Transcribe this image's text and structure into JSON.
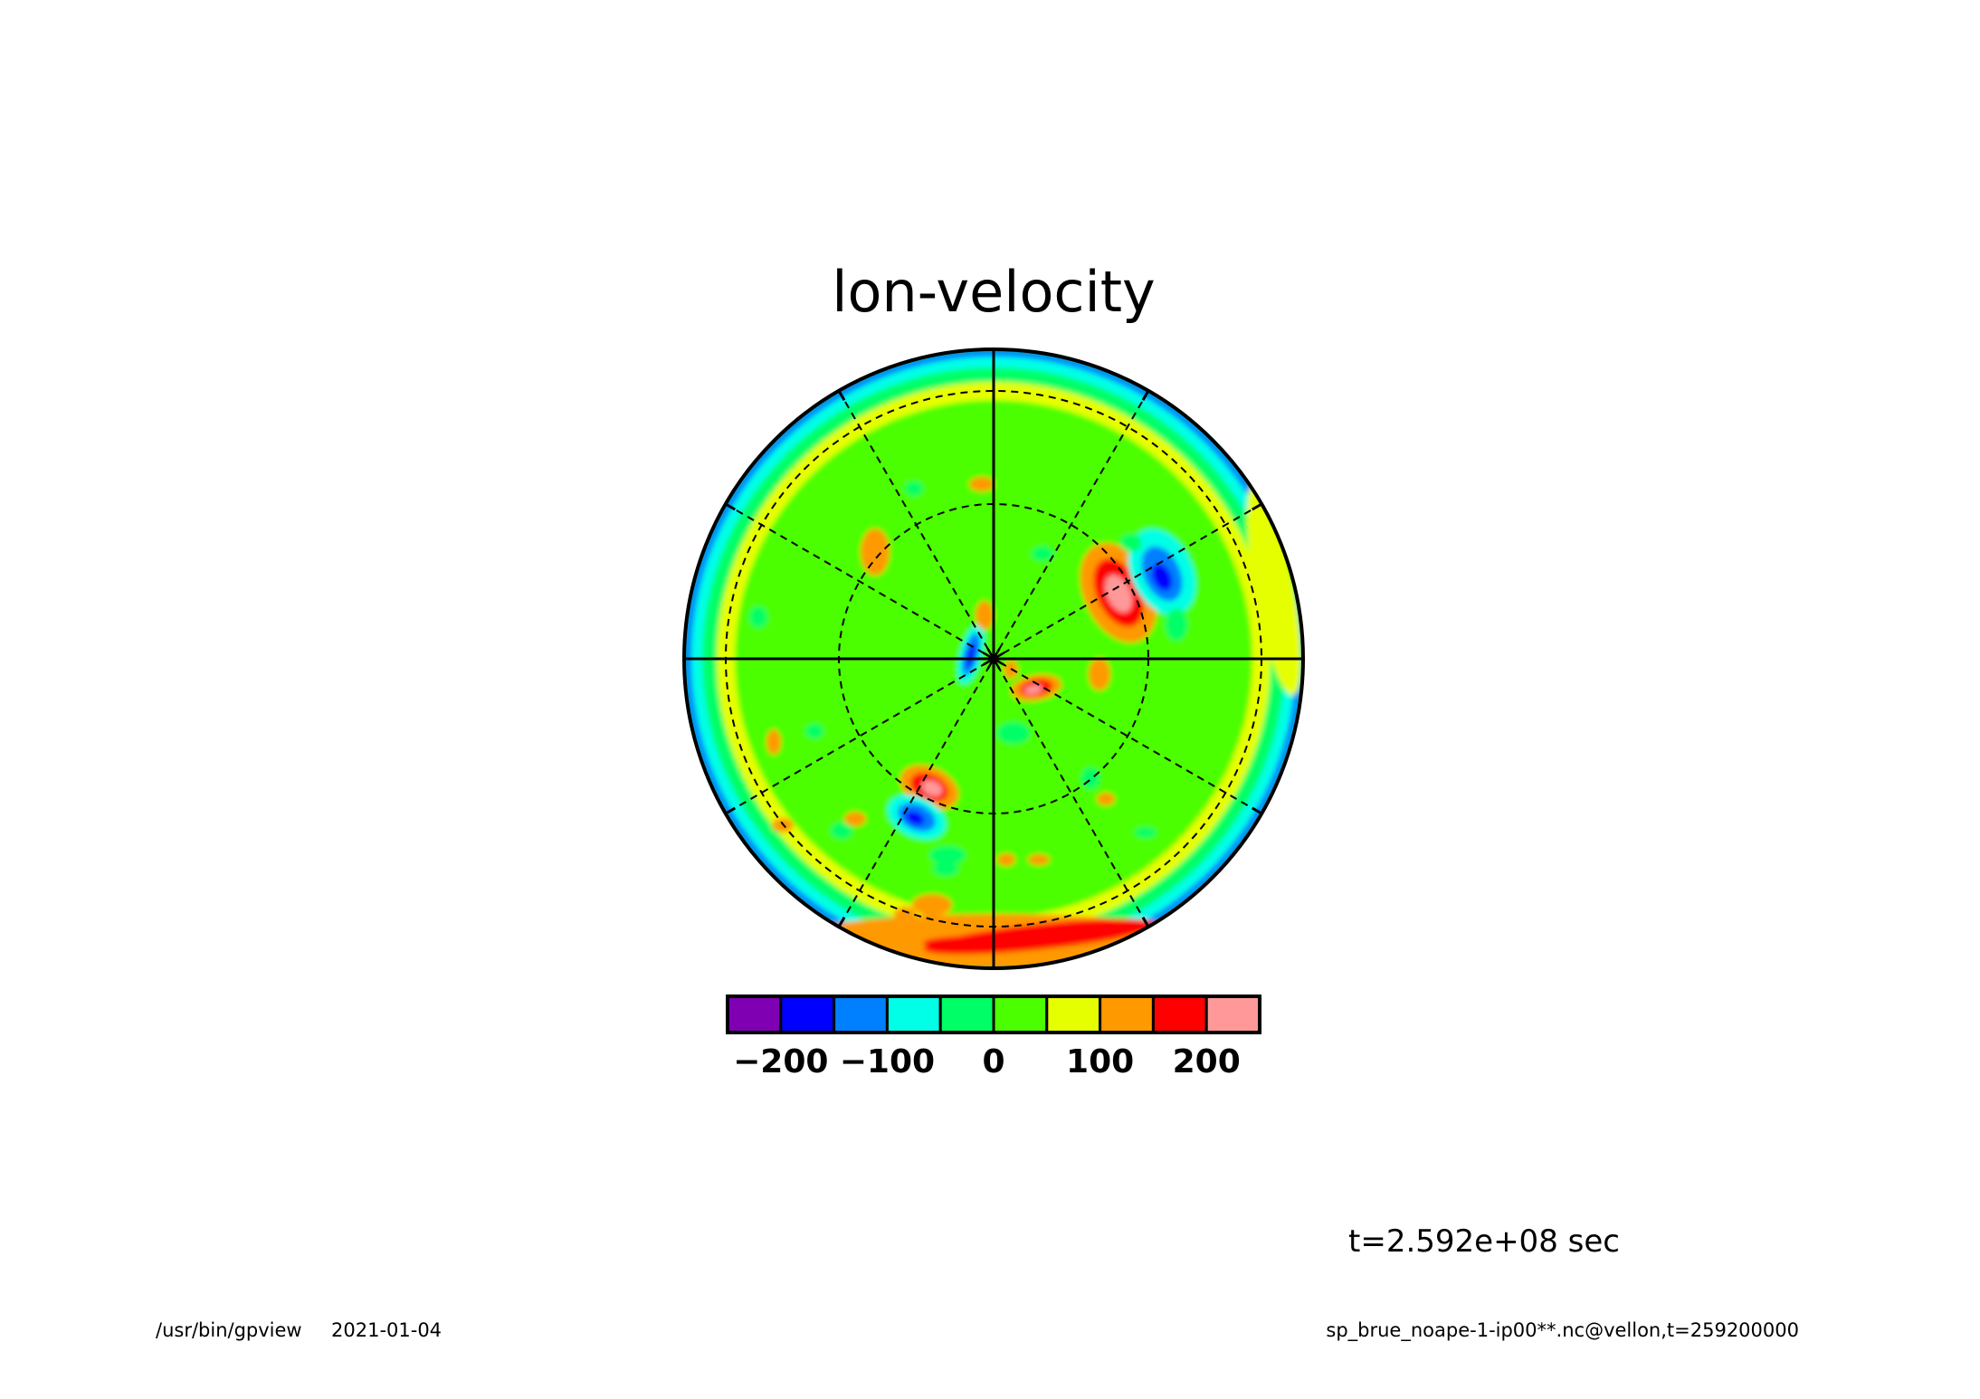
{
  "chart_data": {
    "type": "heatmap",
    "projection": "polar-stereographic",
    "title": "lon-velocity",
    "grid": true,
    "colorbar": {
      "ticks": [
        "−200",
        "−100",
        "0",
        "100",
        "200"
      ],
      "tick_values": [
        -200,
        -100,
        0,
        100,
        200
      ],
      "levels": [
        -250,
        -200,
        -150,
        -100,
        -50,
        0,
        50,
        100,
        150,
        200,
        250
      ],
      "colors": [
        "#7f00b3",
        "#0000ff",
        "#0080ff",
        "#00ffe6",
        "#00ff66",
        "#4cff00",
        "#e6ff00",
        "#ff9900",
        "#ff0000",
        "#ff9999"
      ]
    },
    "features": [
      {
        "name": "outer ring",
        "value_range": [
          -120,
          80
        ]
      },
      {
        "name": "south arc",
        "value_range": [
          150,
          220
        ]
      },
      {
        "name": "vortex pair NE",
        "positive": 200,
        "negative": -170
      },
      {
        "name": "vortex pair SW",
        "positive": 220,
        "negative": -180
      },
      {
        "name": "pole dipole",
        "positive": 200,
        "negative": -200
      }
    ]
  },
  "annotations": {
    "time": "t=2.592e+08 sec",
    "program": "/usr/bin/gpview",
    "date": "2021-01-04",
    "source": "sp_brue_noape-1-ip00**.nc@vellon,t=259200000"
  }
}
